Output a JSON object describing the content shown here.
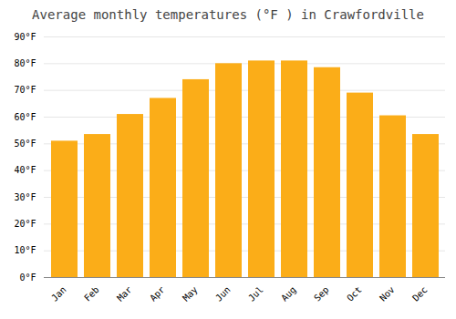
{
  "chart_data": {
    "type": "bar",
    "title": "Average monthly temperatures (°F ) in Crawfordville",
    "categories": [
      "Jan",
      "Feb",
      "Mar",
      "Apr",
      "May",
      "Jun",
      "Jul",
      "Aug",
      "Sep",
      "Oct",
      "Nov",
      "Dec"
    ],
    "values": [
      51,
      53.5,
      61,
      67,
      74,
      80,
      81,
      81,
      78.5,
      69,
      60.5,
      53.5
    ],
    "color": "#FBAD18",
    "ylim": [
      0,
      90
    ],
    "yticks": [
      {
        "value": 0,
        "label": "0°F"
      },
      {
        "value": 10,
        "label": "10°F"
      },
      {
        "value": 20,
        "label": "20°F"
      },
      {
        "value": 30,
        "label": "30°F"
      },
      {
        "value": 40,
        "label": "40°F"
      },
      {
        "value": 50,
        "label": "50°F"
      },
      {
        "value": 60,
        "label": "60°F"
      },
      {
        "value": 70,
        "label": "70°F"
      },
      {
        "value": 80,
        "label": "80°F"
      },
      {
        "value": 90,
        "label": "90°F"
      }
    ],
    "grid": true
  }
}
